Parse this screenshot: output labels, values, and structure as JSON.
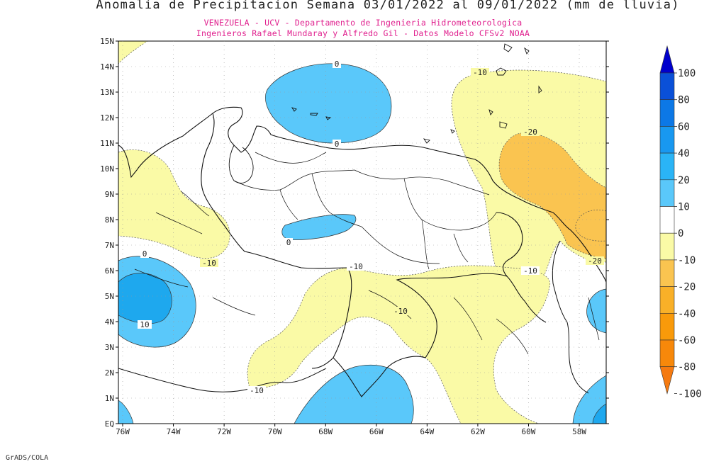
{
  "header": {
    "title": "Anomalia de Precipitacion Semana 03/01/2022 al 09/01/2022 (mm de lluvia)",
    "subtitle_line1": "VENEZUELA - UCV - Departamento de Ingenieria Hidrometeorologica",
    "subtitle_line2": "Ingenieros Rafael Mundaray y Alfredo Gil - Datos Modelo CFSv2 NOAA"
  },
  "map": {
    "lat_labels": [
      "EQ",
      "1N",
      "2N",
      "3N",
      "4N",
      "5N",
      "6N",
      "7N",
      "8N",
      "9N",
      "10N",
      "11N",
      "12N",
      "13N",
      "14N",
      "15N"
    ],
    "lon_labels": [
      "76W",
      "74W",
      "72W",
      "70W",
      "68W",
      "66W",
      "64W",
      "62W",
      "60W",
      "58W"
    ],
    "contour_labels": {
      "c_0_a": "0",
      "c_0_b": "0",
      "c_0_c": "0",
      "c_0_d": "0",
      "c_10_pos": "10",
      "c_m10_a": "-10",
      "c_m10_b": "-10",
      "c_m10_c": "-10",
      "c_m10_d": "-10",
      "c_m10_e": "-10",
      "c_m10_f": "-10",
      "c_m20_a": "-20",
      "c_m20_b": "-20"
    }
  },
  "colorbar": {
    "labels": [
      "100",
      "80",
      "60",
      "40",
      "20",
      "10",
      "0",
      "-10",
      "-20",
      "-40",
      "-60",
      "-80",
      "-100"
    ],
    "colors": {
      "c100": "#0000cc",
      "c80": "#0a50d8",
      "c60": "#0c78e6",
      "c40": "#1898f0",
      "c20": "#2ab4f6",
      "c10": "#5ac8fa",
      "c0": "#ffffff",
      "cm10": "#fafaa6",
      "cm20": "#fac450",
      "cm40": "#f9b028",
      "cm60": "#f99a0a",
      "cm80": "#f7880a",
      "cm100": "#f57a10"
    }
  },
  "footer": {
    "credit": "GrADS/COLA"
  }
}
